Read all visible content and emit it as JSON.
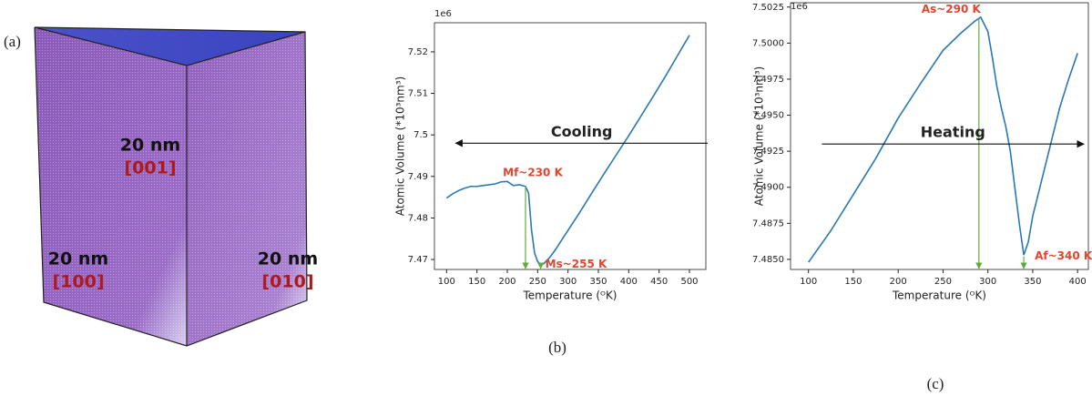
{
  "figure": {
    "panel_label": "(a)",
    "cube_labels": [
      {
        "size": "20 nm",
        "direction": "[001]"
      },
      {
        "size": "20 nm",
        "direction": "[100]"
      },
      {
        "size": "20 nm",
        "direction": "[010]"
      }
    ]
  },
  "chart_data": [
    {
      "type": "line",
      "offset_label": "1e6",
      "xlabel": "Temperature (ᴼK)",
      "ylabel": "Atomic Volume (*10³nm³)",
      "caption": "(b)",
      "xlim": [
        80,
        527
      ],
      "ylim": [
        7.4676,
        7.527
      ],
      "xticks": [
        100,
        150,
        200,
        250,
        300,
        350,
        400,
        450,
        500
      ],
      "yticks": [
        7.47,
        7.48,
        7.49,
        7.5,
        7.51,
        7.52
      ],
      "x": [
        100,
        110,
        120,
        130,
        140,
        150,
        160,
        170,
        180,
        190,
        200,
        210,
        220,
        230,
        235,
        240,
        245,
        250,
        255,
        260,
        270,
        280,
        290,
        300,
        320,
        340,
        360,
        380,
        400,
        420,
        440,
        460,
        480,
        500
      ],
      "series": [
        {
          "color": "#2a78b4",
          "values": [
            7.4848,
            7.4858,
            7.4866,
            7.4872,
            7.4876,
            7.4876,
            7.4878,
            7.488,
            7.4882,
            7.4887,
            7.4888,
            7.4878,
            7.488,
            7.4876,
            7.486,
            7.477,
            7.4715,
            7.4695,
            7.4688,
            7.469,
            7.4705,
            7.4725,
            7.4748,
            7.477,
            7.4815,
            7.4862,
            7.4908,
            7.4953,
            7.4998,
            7.5045,
            7.5092,
            7.514,
            7.519,
            7.524
          ]
        }
      ],
      "annotation_color": "#e0462d",
      "marker_color": "#5cae3a",
      "annotations": [
        {
          "text": "Mf~230 K",
          "x": 230,
          "y": 7.4876
        },
        {
          "text": "Ms~255 K",
          "x": 255,
          "y": 7.4688
        }
      ],
      "arrow": {
        "text": "Cooling",
        "y": 7.498,
        "from": 530,
        "to": 115
      }
    },
    {
      "type": "line",
      "offset_label": "1e6",
      "xlabel": "Temperature (ᴼK)",
      "ylabel": "Atomic Volume (*10³nm³)",
      "caption": "(c)",
      "xlim": [
        80,
        412
      ],
      "ylim": [
        7.4843,
        7.5028
      ],
      "xticks": [
        100,
        150,
        200,
        250,
        300,
        350,
        400
      ],
      "yticks": [
        {
          "value": 7.485,
          "label": "7.4850"
        },
        7.4875,
        {
          "value": 7.49,
          "label": "7.4900"
        },
        7.4925,
        {
          "value": 7.495,
          "label": "7.4950"
        },
        7.4975,
        {
          "value": 7.5,
          "label": "7.5000"
        },
        7.5025
      ],
      "x": [
        100,
        125,
        150,
        175,
        200,
        225,
        250,
        270,
        285,
        292,
        300,
        305,
        310,
        315,
        320,
        325,
        330,
        335,
        340,
        345,
        350,
        360,
        370,
        380,
        390,
        400
      ],
      "series": [
        {
          "color": "#2a78b4",
          "values": [
            7.4848,
            7.487,
            7.4895,
            7.492,
            7.4948,
            7.4972,
            7.4995,
            7.5007,
            7.5015,
            7.5018,
            7.5008,
            7.499,
            7.497,
            7.4955,
            7.4942,
            7.4925,
            7.49,
            7.4875,
            7.4853,
            7.4862,
            7.488,
            7.4905,
            7.493,
            7.4955,
            7.4975,
            7.4993
          ]
        }
      ],
      "annotation_color": "#e0462d",
      "marker_color": "#5cae3a",
      "annotations": [
        {
          "text": "As~290 K",
          "x": 290,
          "y": 7.5017
        },
        {
          "text": "Af~340 K",
          "x": 340,
          "y": 7.4852
        }
      ],
      "arrow": {
        "text": "Heating",
        "y": 7.493,
        "from": 115,
        "to": 407
      }
    }
  ]
}
